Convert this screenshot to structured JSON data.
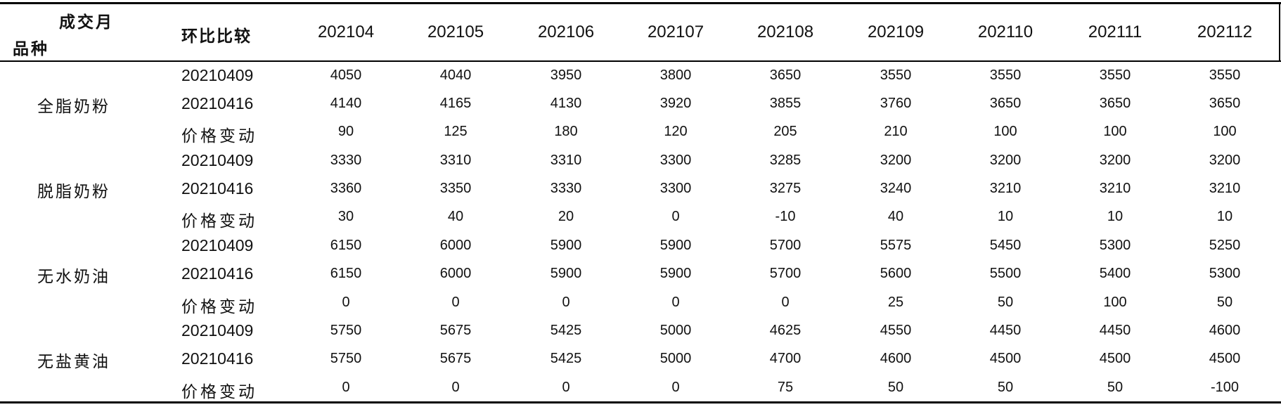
{
  "header": {
    "corner_top": "成交月",
    "corner_bottom": "品种",
    "compare": "环比比较",
    "months": [
      "202104",
      "202105",
      "202106",
      "202107",
      "202108",
      "202109",
      "202110",
      "202111",
      "202112"
    ]
  },
  "groups": [
    {
      "product": "全脂奶粉",
      "rows": [
        {
          "label": "20210409",
          "values": [
            "4050",
            "4040",
            "3950",
            "3800",
            "3650",
            "3550",
            "3550",
            "3550",
            "3550"
          ]
        },
        {
          "label": "20210416",
          "values": [
            "4140",
            "4165",
            "4130",
            "3920",
            "3855",
            "3760",
            "3650",
            "3650",
            "3650"
          ]
        },
        {
          "label": "价格变动",
          "values": [
            "90",
            "125",
            "180",
            "120",
            "205",
            "210",
            "100",
            "100",
            "100"
          ]
        }
      ]
    },
    {
      "product": "脱脂奶粉",
      "rows": [
        {
          "label": "20210409",
          "values": [
            "3330",
            "3310",
            "3310",
            "3300",
            "3285",
            "3200",
            "3200",
            "3200",
            "3200"
          ]
        },
        {
          "label": "20210416",
          "values": [
            "3360",
            "3350",
            "3330",
            "3300",
            "3275",
            "3240",
            "3210",
            "3210",
            "3210"
          ]
        },
        {
          "label": "价格变动",
          "values": [
            "30",
            "40",
            "20",
            "0",
            "-10",
            "40",
            "10",
            "10",
            "10"
          ]
        }
      ]
    },
    {
      "product": "无水奶油",
      "rows": [
        {
          "label": "20210409",
          "values": [
            "6150",
            "6000",
            "5900",
            "5900",
            "5700",
            "5575",
            "5450",
            "5300",
            "5250"
          ]
        },
        {
          "label": "20210416",
          "values": [
            "6150",
            "6000",
            "5900",
            "5900",
            "5700",
            "5600",
            "5500",
            "5400",
            "5300"
          ]
        },
        {
          "label": "价格变动",
          "values": [
            "0",
            "0",
            "0",
            "0",
            "0",
            "25",
            "50",
            "100",
            "50"
          ]
        }
      ]
    },
    {
      "product": "无盐黄油",
      "rows": [
        {
          "label": "20210409",
          "values": [
            "5750",
            "5675",
            "5425",
            "5000",
            "4625",
            "4550",
            "4450",
            "4450",
            "4600"
          ]
        },
        {
          "label": "20210416",
          "values": [
            "5750",
            "5675",
            "5425",
            "5000",
            "4700",
            "4600",
            "4500",
            "4500",
            "4500"
          ]
        },
        {
          "label": "价格变动",
          "values": [
            "0",
            "0",
            "0",
            "0",
            "75",
            "50",
            "50",
            "50",
            "-100"
          ]
        }
      ]
    }
  ]
}
